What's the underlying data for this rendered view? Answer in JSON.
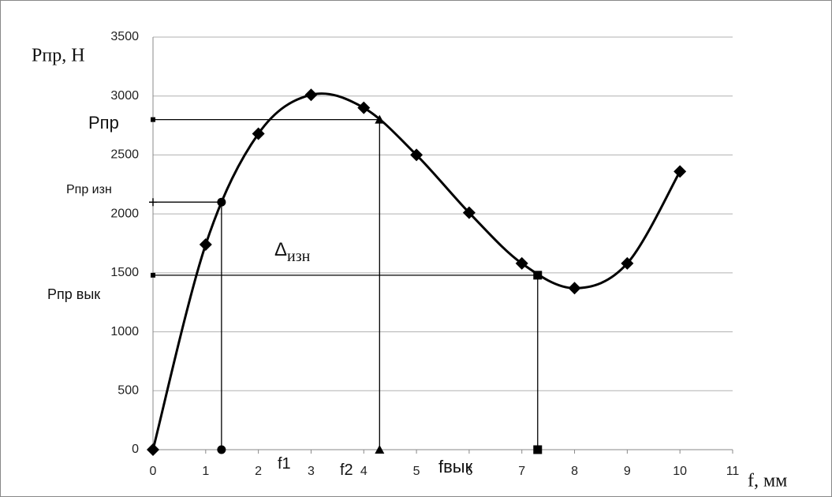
{
  "chart_data": {
    "type": "line",
    "y_label": "Рпр, Н",
    "x_label": "f, мм",
    "x": [
      0,
      1,
      2,
      3,
      4,
      5,
      6,
      7,
      8,
      9,
      10
    ],
    "series": [
      {
        "color": "#000000",
        "marker": "diamond",
        "smooth": true,
        "values": [
          0,
          1740,
          2680,
          3010,
          2900,
          2500,
          2010,
          1580,
          1370,
          1580,
          2360
        ]
      }
    ],
    "guides": [
      {
        "label": "Рпр",
        "x": 4.3,
        "y": 2800,
        "marker": "triangle"
      },
      {
        "label": "Рпр изн",
        "x": 1.3,
        "y": 2100,
        "marker": "circle"
      },
      {
        "label": "Рпр вык",
        "x": 7.3,
        "y": 1480,
        "marker": "square"
      }
    ],
    "annotations": [
      {
        "text": "Δ",
        "sub": "изн"
      },
      {
        "text": "f1"
      },
      {
        "text": "f2"
      },
      {
        "text": "fвык"
      }
    ],
    "xlim": [
      0,
      11
    ],
    "xticks": [
      0,
      1,
      2,
      3,
      4,
      5,
      6,
      7,
      8,
      9,
      10,
      11
    ],
    "ylim": [
      0,
      3500
    ],
    "yticks": [
      0,
      500,
      1000,
      1500,
      2000,
      2500,
      3000,
      3500
    ],
    "grid": true
  }
}
